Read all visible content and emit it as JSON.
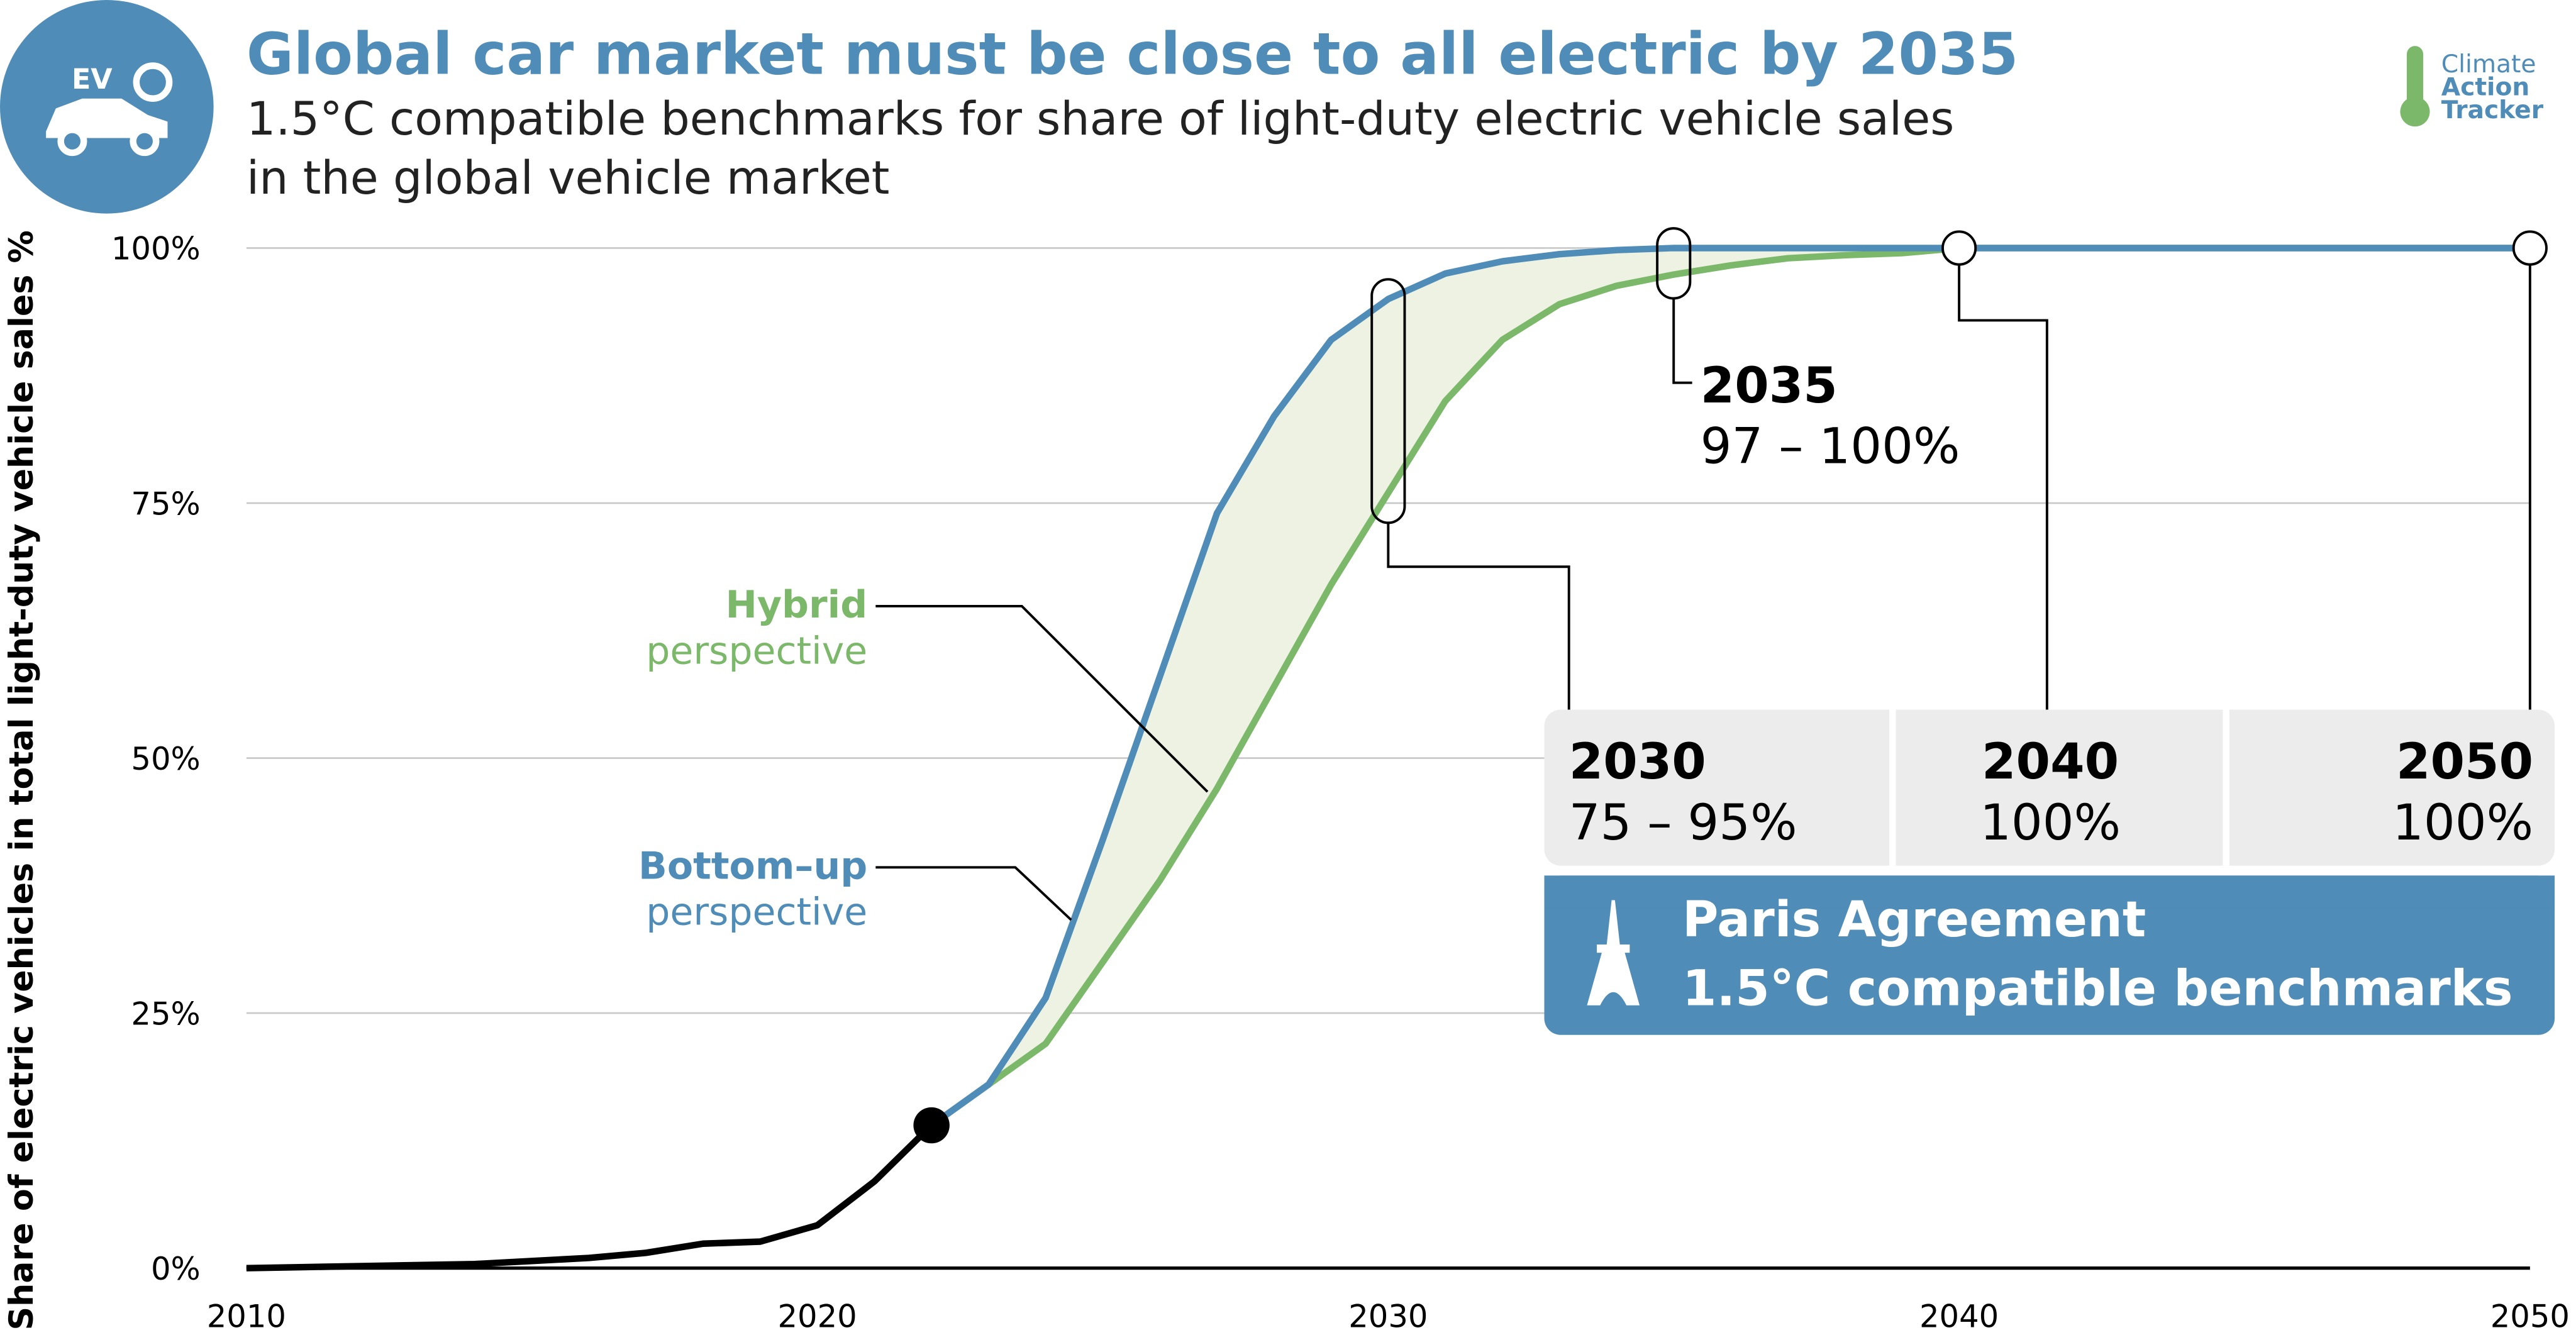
{
  "chart_data": {
    "type": "line",
    "title": "Global car market must be close to all electric by 2035",
    "subtitle_lines": [
      "1.5°C compatible benchmarks for share of light-duty electric vehicle sales",
      "in the global vehicle market"
    ],
    "y_label": "Share of electric vehicles in total light-duty vehicle sales %",
    "icon_text": "EV",
    "logo": [
      "Climate",
      "Action",
      "Tracker"
    ],
    "x": [
      2010,
      2011,
      2012,
      2013,
      2014,
      2015,
      2016,
      2017,
      2018,
      2019,
      2020,
      2021,
      2022,
      2023,
      2024,
      2025,
      2026,
      2027,
      2028,
      2029,
      2030,
      2031,
      2032,
      2033,
      2034,
      2035,
      2036,
      2037,
      2038,
      2039,
      2040,
      2041,
      2042,
      2043,
      2044,
      2045,
      2046,
      2047,
      2048,
      2049,
      2050
    ],
    "series": [
      {
        "color": "#000000",
        "values": [
          0,
          0.1,
          0.2,
          0.3,
          0.4,
          0.7,
          1,
          1.5,
          2.4,
          2.6,
          4.2,
          8.5,
          14,
          null,
          null,
          null,
          null,
          null,
          null,
          null,
          null,
          null,
          null,
          null,
          null,
          null,
          null,
          null,
          null,
          null,
          null,
          null,
          null,
          null,
          null,
          null,
          null,
          null,
          null,
          null,
          null
        ]
      },
      {
        "color": "#4f8db8",
        "label_lines": [
          "Bottom–up",
          "perspective"
        ],
        "values": [
          null,
          null,
          null,
          null,
          null,
          null,
          null,
          null,
          null,
          null,
          null,
          null,
          14,
          18,
          26.5,
          42,
          58,
          74,
          83.5,
          91,
          95,
          97.5,
          98.7,
          99.4,
          99.8,
          100,
          100,
          100,
          100,
          100,
          100,
          100,
          100,
          100,
          100,
          100,
          100,
          100,
          100,
          100,
          100
        ]
      },
      {
        "color": "#7cb86a",
        "label_lines": [
          "Hybrid",
          "perspective"
        ],
        "values": [
          null,
          null,
          null,
          null,
          null,
          null,
          null,
          null,
          null,
          null,
          null,
          null,
          14,
          18,
          22,
          30,
          38,
          47,
          57,
          67,
          76,
          85,
          91,
          94.5,
          96.3,
          97.4,
          98.3,
          99,
          99.3,
          99.5,
          100,
          100,
          100,
          100,
          100,
          100,
          100,
          100,
          100,
          100,
          100
        ]
      }
    ],
    "band_color": "#eef2e2",
    "xlim": [
      2010,
      2050
    ],
    "xticks": [
      2010,
      2020,
      2030,
      2040,
      2050
    ],
    "ylim": [
      0,
      100
    ],
    "yticks": [
      {
        "value": 0,
        "label": "0%"
      },
      {
        "value": 25,
        "label": "25%"
      },
      {
        "value": 50,
        "label": "50%"
      },
      {
        "value": 75,
        "label": "75%"
      },
      {
        "value": 100,
        "label": "100%"
      }
    ],
    "grid": true,
    "benchmarks": [
      {
        "year": 2030,
        "low": 75,
        "high": 95,
        "label": "75 – 95%"
      },
      {
        "year": 2035,
        "low": 97,
        "high": 100,
        "label": "97 – 100%"
      },
      {
        "year": 2040,
        "low": 100,
        "high": 100,
        "label": "100%"
      },
      {
        "year": 2050,
        "low": 100,
        "high": 100,
        "label": "100%"
      }
    ],
    "banner": [
      "Paris Agreement",
      "1.5°C compatible benchmarks"
    ]
  }
}
